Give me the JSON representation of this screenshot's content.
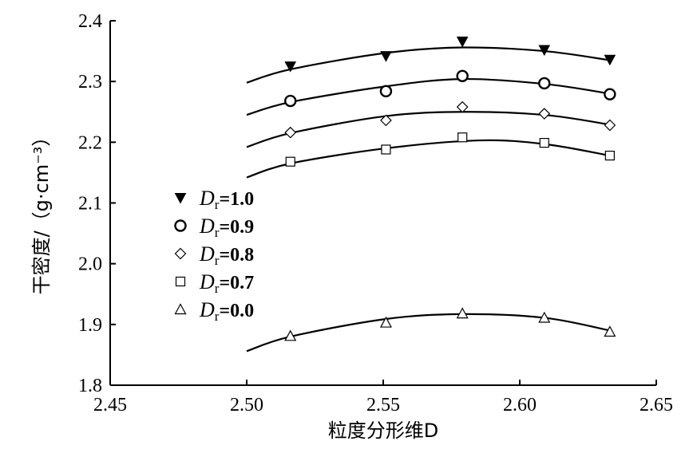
{
  "chart_data": {
    "type": "scatter",
    "xlabel": "粒度分形维D",
    "ylabel": "干密度/（g·cm⁻³）",
    "xlim": [
      2.45,
      2.65
    ],
    "ylim": [
      1.8,
      2.4
    ],
    "xticks": [
      "2.45",
      "2.50",
      "2.55",
      "2.60",
      "2.65"
    ],
    "yticks": [
      "1.8",
      "1.9",
      "2.0",
      "2.1",
      "2.2",
      "2.3",
      "2.4"
    ],
    "grid": false,
    "legend_position": "left",
    "series": [
      {
        "name": "Dr=1.0",
        "legend_label": {
          "symbol": "D",
          "subscript": "r",
          "value": "=1.0"
        },
        "marker": "triangle-down-filled",
        "x": [
          2.516,
          2.551,
          2.579,
          2.609,
          2.633
        ],
        "y": [
          2.325,
          2.342,
          2.366,
          2.352,
          2.336
        ],
        "fit": [
          [
            2.5,
            2.298
          ],
          [
            2.516,
            2.32
          ],
          [
            2.551,
            2.347
          ],
          [
            2.579,
            2.356
          ],
          [
            2.609,
            2.35
          ],
          [
            2.633,
            2.335
          ]
        ]
      },
      {
        "name": "Dr=0.9",
        "legend_label": {
          "symbol": "D",
          "subscript": "r",
          "value": "=0.9"
        },
        "marker": "circle-open",
        "x": [
          2.516,
          2.551,
          2.579,
          2.609,
          2.633
        ],
        "y": [
          2.268,
          2.284,
          2.309,
          2.297,
          2.279
        ],
        "fit": [
          [
            2.5,
            2.245
          ],
          [
            2.516,
            2.266
          ],
          [
            2.551,
            2.292
          ],
          [
            2.579,
            2.304
          ],
          [
            2.609,
            2.296
          ],
          [
            2.633,
            2.28
          ]
        ]
      },
      {
        "name": "Dr=0.8",
        "legend_label": {
          "symbol": "D",
          "subscript": "r",
          "value": "=0.8"
        },
        "marker": "diamond-open",
        "x": [
          2.516,
          2.551,
          2.579,
          2.609,
          2.633
        ],
        "y": [
          2.216,
          2.236,
          2.258,
          2.247,
          2.228
        ],
        "fit": [
          [
            2.5,
            2.192
          ],
          [
            2.516,
            2.215
          ],
          [
            2.551,
            2.243
          ],
          [
            2.579,
            2.25
          ],
          [
            2.609,
            2.245
          ],
          [
            2.633,
            2.229
          ]
        ]
      },
      {
        "name": "Dr=0.7",
        "legend_label": {
          "symbol": "D",
          "subscript": "r",
          "value": "=0.7"
        },
        "marker": "square-open",
        "x": [
          2.516,
          2.551,
          2.579,
          2.609,
          2.633
        ],
        "y": [
          2.168,
          2.188,
          2.208,
          2.199,
          2.178
        ],
        "fit": [
          [
            2.5,
            2.142
          ],
          [
            2.516,
            2.165
          ],
          [
            2.551,
            2.19
          ],
          [
            2.585,
            2.203
          ],
          [
            2.609,
            2.197
          ],
          [
            2.633,
            2.178
          ]
        ]
      },
      {
        "name": "Dr=0.0",
        "legend_label": {
          "symbol": "D",
          "subscript": "r",
          "value": "=0.0"
        },
        "marker": "triangle-up-open",
        "x": [
          2.516,
          2.551,
          2.579,
          2.609,
          2.633
        ],
        "y": [
          1.881,
          1.903,
          1.918,
          1.911,
          1.888
        ],
        "fit": [
          [
            2.5,
            1.856
          ],
          [
            2.516,
            1.88
          ],
          [
            2.551,
            1.909
          ],
          [
            2.579,
            1.917
          ],
          [
            2.609,
            1.911
          ],
          [
            2.633,
            1.89
          ]
        ]
      }
    ]
  }
}
